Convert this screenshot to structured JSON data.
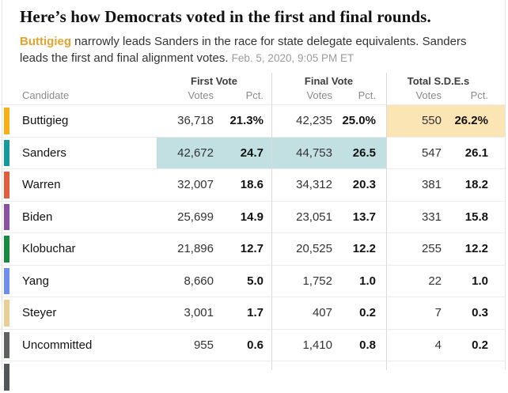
{
  "page": {
    "title": "Here’s how Democrats voted in the first and final rounds.",
    "subtitle_lead": "Buttigieg",
    "subtitle_rest": " narrowly leads Sanders in the race for state delegate equivalents. Sanders leads the first and final alignment votes. ",
    "timestamp": "Feb. 5, 2020, 9:05 PM ET"
  },
  "colors": {
    "lead_word": "#e3a32e",
    "teal_highlight": "#c2e0e2",
    "gold_highlight": "#fce5b5",
    "divider": "#dadada"
  },
  "table": {
    "candidate_header": "Candidate",
    "groups": [
      {
        "label": "First Vote",
        "votes": "Votes",
        "pct": "Pct."
      },
      {
        "label": "Final Vote",
        "votes": "Votes",
        "pct": "Pct."
      },
      {
        "label": "Total S.D.E.s",
        "votes": "Votes",
        "pct": "Pct."
      }
    ]
  },
  "chart_data": {
    "type": "table",
    "title": "Here’s how Democrats voted in the first and final rounds.",
    "columns": [
      "Candidate",
      "First Vote Votes",
      "First Vote Pct.",
      "Final Vote Votes",
      "Final Vote Pct.",
      "Total S.D.E.s Votes",
      "Total S.D.E.s Pct."
    ],
    "rows": [
      {
        "candidate": "Buttigieg",
        "color": "#f9b016",
        "first_votes": "36,718",
        "first_pct": "21.3%",
        "final_votes": "42,235",
        "final_pct": "25.0%",
        "sde_votes": "550",
        "sde_pct": "26.2%",
        "highlight": "sde"
      },
      {
        "candidate": "Sanders",
        "color": "#149a9f",
        "first_votes": "42,672",
        "first_pct": "24.7",
        "final_votes": "44,753",
        "final_pct": "26.5",
        "sde_votes": "547",
        "sde_pct": "26.1",
        "highlight": "votes"
      },
      {
        "candidate": "Warren",
        "color": "#e45c3b",
        "first_votes": "32,007",
        "first_pct": "18.6",
        "final_votes": "34,312",
        "final_pct": "20.3",
        "sde_votes": "381",
        "sde_pct": "18.2",
        "highlight": ""
      },
      {
        "candidate": "Biden",
        "color": "#8c4fa6",
        "first_votes": "25,699",
        "first_pct": "14.9",
        "final_votes": "23,051",
        "final_pct": "13.7",
        "sde_votes": "331",
        "sde_pct": "15.8",
        "highlight": ""
      },
      {
        "candidate": "Klobuchar",
        "color": "#178a42",
        "first_votes": "21,896",
        "first_pct": "12.7",
        "final_votes": "20,525",
        "final_pct": "12.2",
        "sde_votes": "255",
        "sde_pct": "12.2",
        "highlight": ""
      },
      {
        "candidate": "Yang",
        "color": "#6e8ff0",
        "first_votes": "8,660",
        "first_pct": "5.0",
        "final_votes": "1,752",
        "final_pct": "1.0",
        "sde_votes": "22",
        "sde_pct": "1.0",
        "highlight": ""
      },
      {
        "candidate": "Steyer",
        "color": "#ebcd96",
        "first_votes": "3,001",
        "first_pct": "1.7",
        "final_votes": "407",
        "final_pct": "0.2",
        "sde_votes": "7",
        "sde_pct": "0.3",
        "highlight": ""
      },
      {
        "candidate": "Uncommitted",
        "color": "#606060",
        "first_votes": "955",
        "first_pct": "0.6",
        "final_votes": "1,410",
        "final_pct": "0.8",
        "sde_votes": "4",
        "sde_pct": "0.2",
        "highlight": ""
      },
      {
        "candidate": "",
        "color": "#53575c",
        "first_votes": "",
        "first_pct": "",
        "final_votes": "",
        "final_pct": "",
        "sde_votes": "",
        "sde_pct": "",
        "highlight": "",
        "partial": true
      }
    ]
  }
}
